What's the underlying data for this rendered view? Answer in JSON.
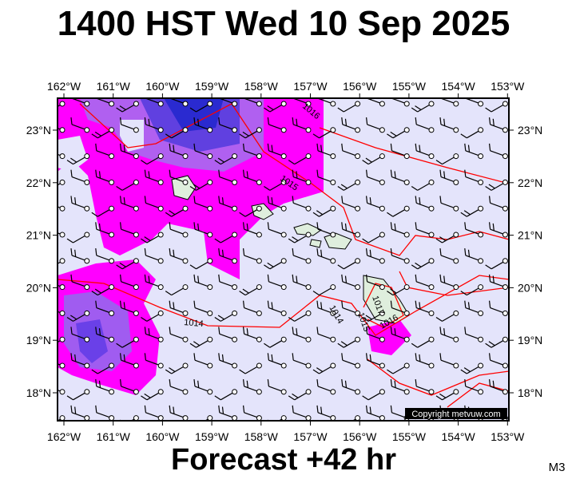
{
  "header": {
    "title": "1400 HST Wed 10 Sep 2025"
  },
  "map": {
    "lon_labels": [
      "162°W",
      "161°W",
      "160°W",
      "159°W",
      "158°W",
      "157°W",
      "156°W",
      "155°W",
      "154°W",
      "153°W"
    ],
    "lat_labels": [
      "23°N",
      "22°N",
      "21°N",
      "20°N",
      "19°N",
      "18°N"
    ],
    "isobar_labels": [
      "1016",
      "1015",
      "1014",
      "1014",
      "1015",
      "1017",
      "1016"
    ],
    "copyright": "Copyright metvuw.com"
  },
  "footer": {
    "forecast": "Forecast +42 hr",
    "code": "M3"
  }
}
